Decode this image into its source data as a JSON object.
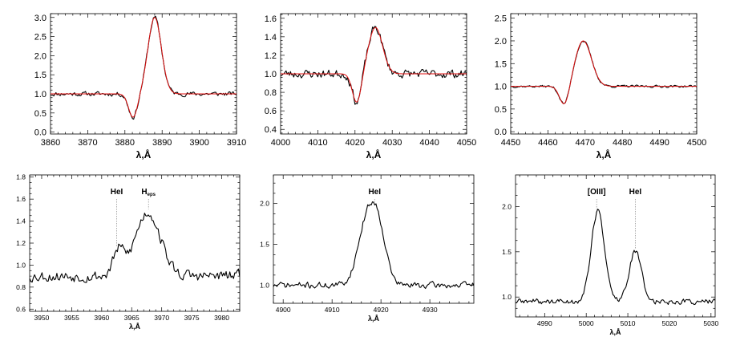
{
  "chart_data": [
    {
      "type": "line",
      "panel": "top-left",
      "xlabel": "λ,Å",
      "xlim": [
        3860,
        3910
      ],
      "ylim": [
        -0.05,
        3.1
      ],
      "xticks": [
        3860,
        3870,
        3880,
        3890,
        3900,
        3910
      ],
      "yticks": [
        0.0,
        0.5,
        1.0,
        1.5,
        2.0,
        2.5,
        3.0
      ],
      "ytick_decimals": 1,
      "profile": {
        "kind": "pcygni",
        "continuum": 1.0,
        "emission_center": 3888.0,
        "emission_peak": 3.0,
        "emission_width": 1.8,
        "absorption_center": 3882.2,
        "absorption_depth": 0.62,
        "absorption_width": 1.2
      },
      "noise": {
        "seed": 11,
        "amplitude": 0.09
      },
      "series": [
        {
          "role": "observed",
          "color": "#000000"
        },
        {
          "role": "model",
          "color": "#e01010"
        }
      ]
    },
    {
      "type": "line",
      "panel": "top-middle",
      "xlabel": "λ,Å",
      "xlim": [
        4000,
        4050
      ],
      "ylim": [
        0.35,
        1.65
      ],
      "xticks": [
        4000,
        4010,
        4020,
        4030,
        4040,
        4050
      ],
      "yticks": [
        0.4,
        0.6,
        0.8,
        1.0,
        1.2,
        1.4,
        1.6
      ],
      "ytick_decimals": 1,
      "profile": {
        "kind": "pcygni",
        "continuum": 1.0,
        "emission_center": 4025.5,
        "emission_peak": 1.5,
        "emission_width": 1.9,
        "absorption_center": 4020.5,
        "absorption_depth": 0.32,
        "absorption_width": 1.2
      },
      "noise": {
        "seed": 23,
        "amplitude": 0.07
      },
      "series": [
        {
          "role": "observed",
          "color": "#000000"
        },
        {
          "role": "model",
          "color": "#e01010"
        }
      ]
    },
    {
      "type": "line",
      "panel": "top-right",
      "xlabel": "λ,Å",
      "xlim": [
        4450,
        4500
      ],
      "ylim": [
        -0.05,
        2.6
      ],
      "xticks": [
        4450,
        4460,
        4470,
        4480,
        4490,
        4500
      ],
      "yticks": [
        0.0,
        0.5,
        1.0,
        1.5,
        2.0,
        2.5
      ],
      "ytick_decimals": 1,
      "profile": {
        "kind": "pcygni",
        "continuum": 1.0,
        "emission_center": 4469.5,
        "emission_peak": 2.0,
        "emission_width": 2.2,
        "absorption_center": 4464.5,
        "absorption_depth": 0.45,
        "absorption_width": 1.3
      },
      "noise": {
        "seed": 37,
        "amplitude": 0.04
      },
      "series": [
        {
          "role": "observed",
          "color": "#000000"
        },
        {
          "role": "model",
          "color": "#e01010"
        }
      ]
    },
    {
      "type": "line",
      "panel": "bottom-left",
      "xlabel": "λ,Å",
      "xlim": [
        3948,
        3983
      ],
      "ylim": [
        0.58,
        1.82
      ],
      "xticks": [
        3950,
        3955,
        3960,
        3965,
        3970,
        3975,
        3980
      ],
      "yticks": [
        0.6,
        0.8,
        1.0,
        1.2,
        1.4,
        1.6,
        1.8
      ],
      "ytick_decimals": 1,
      "profile": {
        "kind": "emission",
        "continuum": 0.9,
        "lines": [
          {
            "center": 3962.8,
            "peak": 0.22,
            "width": 0.9
          },
          {
            "center": 3967.7,
            "peak": 0.58,
            "width": 2.1
          }
        ]
      },
      "noise": {
        "seed": 53,
        "amplitude": 0.08
      },
      "annotations": [
        {
          "text": "HeI",
          "x": 3962.5
        },
        {
          "text": "H",
          "sub": "eps",
          "x": 3967.8
        }
      ],
      "series": [
        {
          "role": "observed",
          "color": "#000000"
        }
      ]
    },
    {
      "type": "line",
      "panel": "bottom-middle",
      "xlabel": "λ,Å",
      "xlim": [
        4898,
        4939
      ],
      "ylim": [
        0.78,
        2.35
      ],
      "xticks": [
        4900,
        4910,
        4920,
        4930
      ],
      "yticks": [
        1.0,
        1.5,
        2.0
      ],
      "ytick_decimals": 1,
      "profile": {
        "kind": "emission",
        "continuum": 1.0,
        "lines": [
          {
            "center": 4917.0,
            "peak": 0.72,
            "width": 1.8
          },
          {
            "center": 4919.5,
            "peak": 0.62,
            "width": 1.6
          }
        ]
      },
      "noise": {
        "seed": 71,
        "amplitude": 0.06
      },
      "annotations": [
        {
          "text": "HeI",
          "x": 4918.7
        }
      ],
      "series": [
        {
          "role": "observed",
          "color": "#000000"
        }
      ]
    },
    {
      "type": "line",
      "panel": "bottom-right",
      "xlabel": "λ,Å",
      "xlim": [
        4983,
        5031
      ],
      "ylim": [
        0.78,
        2.35
      ],
      "xticks": [
        4990,
        5000,
        5010,
        5020,
        5030
      ],
      "yticks": [
        1.0,
        1.5,
        2.0
      ],
      "ytick_decimals": 1,
      "profile": {
        "kind": "emission",
        "continuum": 0.95,
        "lines": [
          {
            "center": 5002.8,
            "peak": 1.0,
            "width": 1.6
          },
          {
            "center": 5011.8,
            "peak": 0.55,
            "width": 1.5
          }
        ]
      },
      "noise": {
        "seed": 89,
        "amplitude": 0.05
      },
      "annotations": [
        {
          "text": "[OIII]",
          "x": 5002.5
        },
        {
          "text": "HeI",
          "x": 5011.8
        }
      ],
      "series": [
        {
          "role": "observed",
          "color": "#000000"
        }
      ]
    }
  ]
}
